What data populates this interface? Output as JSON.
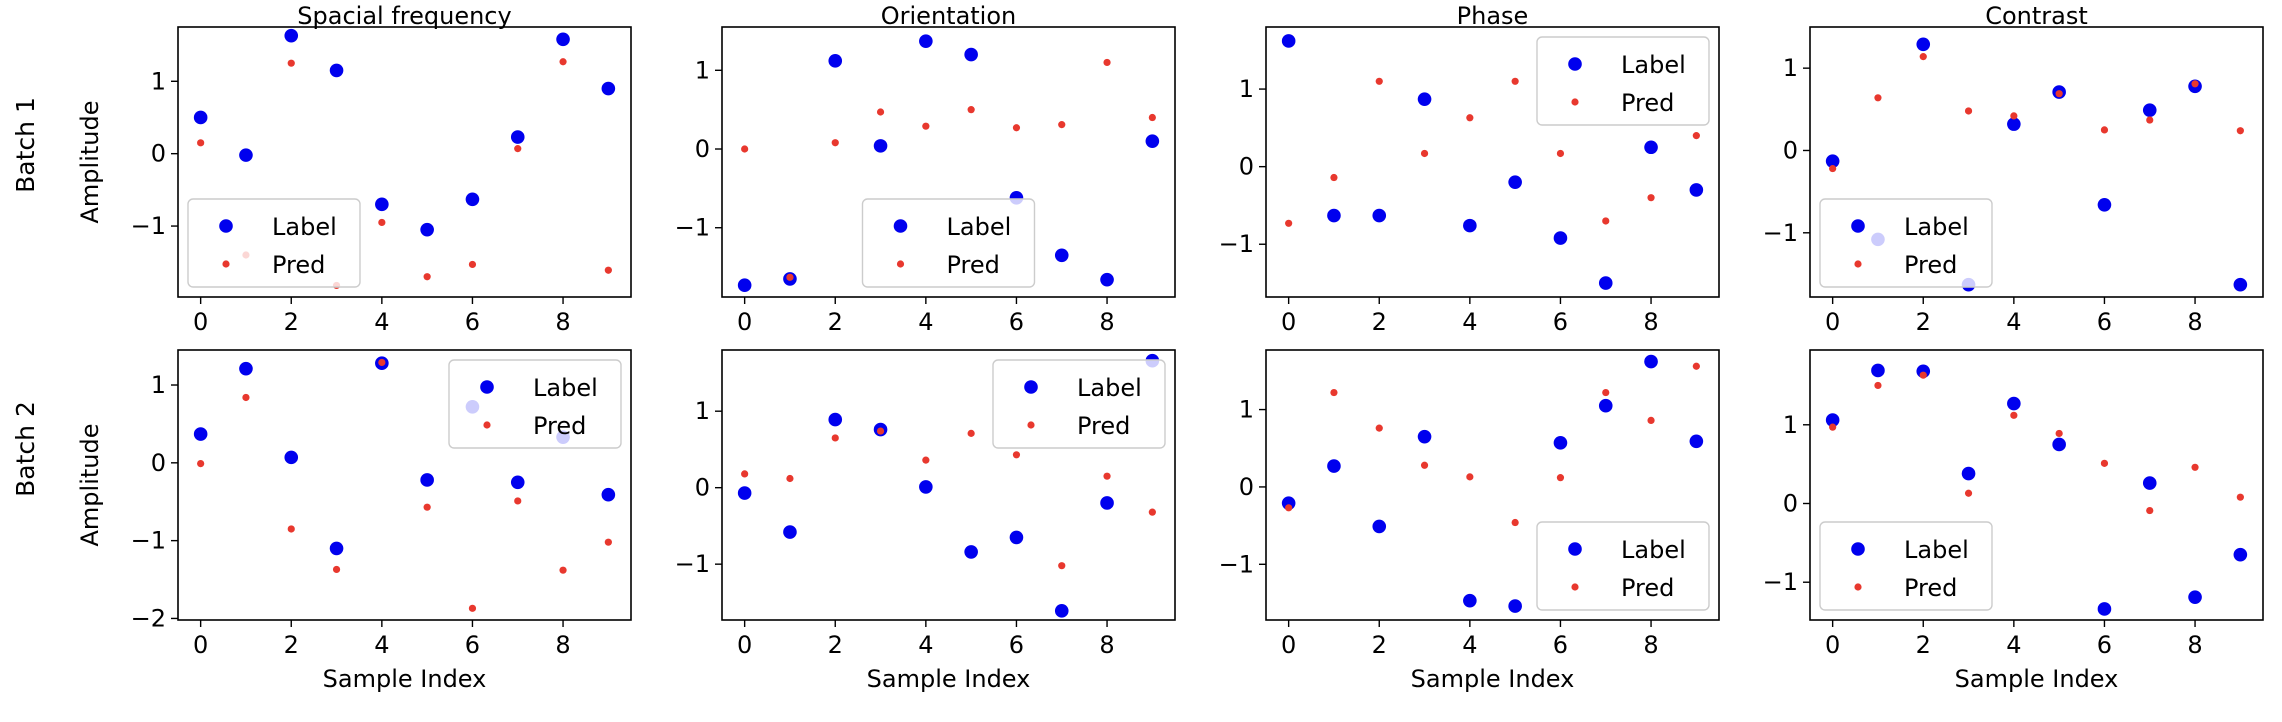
{
  "figure": {
    "row_labels": [
      "Batch 1",
      "Batch 2"
    ],
    "ylabel": "Amplitude",
    "xlabel": "Sample Index"
  },
  "colors": {
    "label": "#0000ee",
    "pred": "#e8382e"
  },
  "legend": {
    "label": "Label",
    "pred": "Pred"
  },
  "chart_data": [
    {
      "type": "scatter",
      "row": 0,
      "col": 0,
      "title": "Spacial frequency",
      "ylabel": "Amplitude",
      "xlabel": "",
      "x": [
        0,
        1,
        2,
        3,
        4,
        5,
        6,
        7,
        8,
        9
      ],
      "xticks": [
        0,
        2,
        4,
        6,
        8
      ],
      "xlim": [
        -0.5,
        9.5
      ],
      "yticks": [
        -1,
        0,
        1
      ],
      "ylim": [
        -1.98,
        1.75
      ],
      "legend_loc": "lower-left",
      "series": [
        {
          "name": "Label",
          "values": [
            0.5,
            -0.02,
            1.63,
            1.15,
            -0.7,
            -1.05,
            -0.63,
            0.23,
            1.58,
            0.9
          ]
        },
        {
          "name": "Pred",
          "values": [
            0.15,
            -1.4,
            1.25,
            -1.82,
            -0.95,
            -1.7,
            -1.53,
            0.07,
            1.27,
            -1.61
          ]
        }
      ]
    },
    {
      "type": "scatter",
      "row": 0,
      "col": 1,
      "title": "Orientation",
      "ylabel": "",
      "xlabel": "",
      "x": [
        0,
        1,
        2,
        3,
        4,
        5,
        6,
        7,
        8,
        9
      ],
      "xticks": [
        0,
        2,
        4,
        6,
        8
      ],
      "xlim": [
        -0.5,
        9.5
      ],
      "yticks": [
        -1,
        0,
        1
      ],
      "ylim": [
        -1.88,
        1.55
      ],
      "legend_loc": "lower-center",
      "series": [
        {
          "name": "Label",
          "values": [
            -1.73,
            -1.65,
            1.12,
            0.04,
            1.37,
            1.2,
            -0.62,
            -1.35,
            -1.66,
            0.1
          ]
        },
        {
          "name": "Pred",
          "values": [
            0.0,
            -1.63,
            0.08,
            0.47,
            0.29,
            0.5,
            0.27,
            0.31,
            1.1,
            0.4
          ]
        }
      ]
    },
    {
      "type": "scatter",
      "row": 0,
      "col": 2,
      "title": "Phase",
      "ylabel": "",
      "xlabel": "",
      "x": [
        0,
        1,
        2,
        3,
        4,
        5,
        6,
        7,
        8,
        9
      ],
      "xticks": [
        0,
        2,
        4,
        6,
        8
      ],
      "xlim": [
        -0.5,
        9.5
      ],
      "yticks": [
        -1,
        0,
        1
      ],
      "ylim": [
        -1.68,
        1.8
      ],
      "legend_loc": "upper-right",
      "series": [
        {
          "name": "Label",
          "values": [
            1.62,
            -0.63,
            -0.63,
            0.87,
            -0.76,
            -0.2,
            -0.92,
            -1.5,
            0.25,
            -0.3
          ]
        },
        {
          "name": "Pred",
          "values": [
            -0.73,
            -0.14,
            1.1,
            0.17,
            0.63,
            1.1,
            0.17,
            -0.7,
            -0.4,
            0.4
          ]
        }
      ]
    },
    {
      "type": "scatter",
      "row": 0,
      "col": 3,
      "title": "Contrast",
      "ylabel": "",
      "xlabel": "",
      "x": [
        0,
        1,
        2,
        3,
        4,
        5,
        6,
        7,
        8,
        9
      ],
      "xticks": [
        0,
        2,
        4,
        6,
        8
      ],
      "xlim": [
        -0.5,
        9.5
      ],
      "yticks": [
        -1,
        0,
        1
      ],
      "ylim": [
        -1.78,
        1.5
      ],
      "legend_loc": "lower-left",
      "series": [
        {
          "name": "Label",
          "values": [
            -0.13,
            -1.08,
            1.29,
            -1.63,
            0.32,
            0.71,
            -0.66,
            0.49,
            0.78,
            -1.63
          ]
        },
        {
          "name": "Pred",
          "values": [
            -0.22,
            0.64,
            1.14,
            0.48,
            0.42,
            0.69,
            0.25,
            0.37,
            0.81,
            0.24
          ]
        }
      ]
    },
    {
      "type": "scatter",
      "row": 1,
      "col": 0,
      "title": "",
      "ylabel": "Amplitude",
      "xlabel": "Sample Index",
      "x": [
        0,
        1,
        2,
        3,
        4,
        5,
        6,
        7,
        8,
        9
      ],
      "xticks": [
        0,
        2,
        4,
        6,
        8
      ],
      "xlim": [
        -0.5,
        9.5
      ],
      "yticks": [
        -2,
        -1,
        0,
        1
      ],
      "ylim": [
        -2.02,
        1.45
      ],
      "legend_loc": "upper-right",
      "series": [
        {
          "name": "Label",
          "values": [
            0.37,
            1.21,
            0.07,
            -1.1,
            1.28,
            -0.22,
            0.72,
            -0.25,
            0.33,
            -0.41
          ]
        },
        {
          "name": "Pred",
          "values": [
            -0.01,
            0.84,
            -0.85,
            -1.37,
            1.29,
            -0.57,
            -1.87,
            -0.49,
            -1.38,
            -1.02
          ]
        }
      ]
    },
    {
      "type": "scatter",
      "row": 1,
      "col": 1,
      "title": "",
      "ylabel": "",
      "xlabel": "Sample Index",
      "x": [
        0,
        1,
        2,
        3,
        4,
        5,
        6,
        7,
        8,
        9
      ],
      "xticks": [
        0,
        2,
        4,
        6,
        8
      ],
      "xlim": [
        -0.5,
        9.5
      ],
      "yticks": [
        -1,
        0,
        1
      ],
      "ylim": [
        -1.73,
        1.8
      ],
      "legend_loc": "upper-right",
      "series": [
        {
          "name": "Label",
          "values": [
            -0.07,
            -0.58,
            0.89,
            0.76,
            0.01,
            -0.84,
            -0.65,
            -1.61,
            -0.2,
            1.66
          ]
        },
        {
          "name": "Pred",
          "values": [
            0.18,
            0.12,
            0.65,
            0.74,
            0.36,
            0.71,
            0.43,
            -1.02,
            0.15,
            -0.32
          ]
        }
      ]
    },
    {
      "type": "scatter",
      "row": 1,
      "col": 2,
      "title": "",
      "ylabel": "",
      "xlabel": "Sample Index",
      "x": [
        0,
        1,
        2,
        3,
        4,
        5,
        6,
        7,
        8,
        9
      ],
      "xticks": [
        0,
        2,
        4,
        6,
        8
      ],
      "xlim": [
        -0.5,
        9.5
      ],
      "yticks": [
        -1,
        0,
        1
      ],
      "ylim": [
        -1.72,
        1.77
      ],
      "legend_loc": "lower-right",
      "series": [
        {
          "name": "Label",
          "values": [
            -0.21,
            0.27,
            -0.51,
            0.65,
            -1.47,
            -1.54,
            0.57,
            1.05,
            1.62,
            0.59
          ]
        },
        {
          "name": "Pred",
          "values": [
            -0.27,
            1.22,
            0.76,
            0.28,
            0.13,
            -0.46,
            0.12,
            1.22,
            0.86,
            1.56
          ]
        }
      ]
    },
    {
      "type": "scatter",
      "row": 1,
      "col": 3,
      "title": "",
      "ylabel": "",
      "xlabel": "Sample Index",
      "x": [
        0,
        1,
        2,
        3,
        4,
        5,
        6,
        7,
        8,
        9
      ],
      "xticks": [
        0,
        2,
        4,
        6,
        8
      ],
      "xlim": [
        -0.5,
        9.5
      ],
      "yticks": [
        -1,
        0,
        1
      ],
      "ylim": [
        -1.48,
        1.95
      ],
      "legend_loc": "lower-left",
      "series": [
        {
          "name": "Label",
          "values": [
            1.06,
            1.69,
            1.68,
            0.38,
            1.27,
            0.75,
            -1.34,
            0.26,
            -1.19,
            -0.65
          ]
        },
        {
          "name": "Pred",
          "values": [
            0.97,
            1.5,
            1.63,
            0.13,
            1.12,
            0.89,
            0.51,
            -0.09,
            0.46,
            0.08
          ]
        }
      ]
    }
  ]
}
